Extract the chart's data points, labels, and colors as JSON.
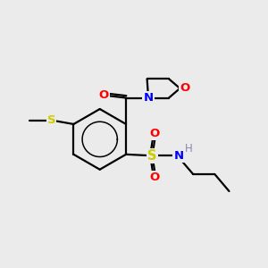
{
  "background_color": "#ebebeb",
  "colors": {
    "C": "#000000",
    "N": "#0000ff",
    "O": "#ff0000",
    "S": "#cccc00",
    "H": "#000000"
  },
  "bond_lw": 1.6,
  "font_size": 9.5
}
